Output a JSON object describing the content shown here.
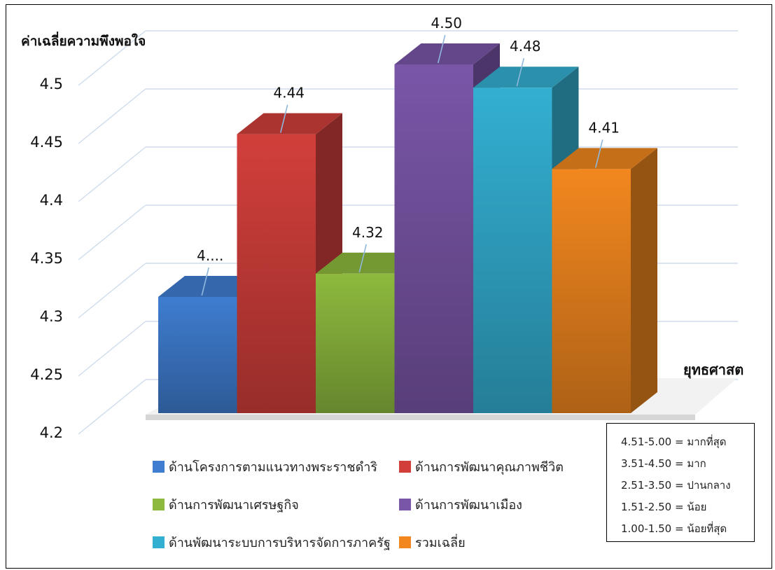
{
  "chart_data": {
    "type": "bar",
    "title": "",
    "ylabel": "ค่าเฉลี่ยความพึงพอใจ",
    "xlabel": "ยุทธศาสต",
    "ylim": [
      4.2,
      4.5
    ],
    "yticks": [
      "4.2",
      "4.25",
      "4.3",
      "4.35",
      "4.4",
      "4.45",
      "4.5"
    ],
    "legend_position": "bottom",
    "style": "3d-column",
    "series": [
      {
        "name": "ด้านโครงการตามแนวทางพระราชดำริ",
        "value": 4.3,
        "label": "4....",
        "color": "#3F7DD0"
      },
      {
        "name": "ด้านการพัฒนาคุณภาพชีวิต",
        "value": 4.44,
        "label": "4.44",
        "color": "#D23F3B"
      },
      {
        "name": "ด้านการพัฒนาเศรษฐกิจ",
        "value": 4.32,
        "label": "4.32",
        "color": "#8DBA3E"
      },
      {
        "name": "ด้านการพัฒนาเมือง",
        "value": 4.5,
        "label": "4.50",
        "color": "#7A56A8"
      },
      {
        "name": "ด้านพัฒนาระบบการบริหารจัดการภาครัฐ",
        "value": 4.48,
        "label": "4.48",
        "color": "#33AFD2"
      },
      {
        "name": "รวมเฉลี่ย",
        "value": 4.41,
        "label": "4.41",
        "color": "#F2871F"
      }
    ]
  },
  "scale_legend": [
    "4.51-5.00  = มากที่สุด",
    "3.51-4.50  = มาก",
    "2.51-3.50  = ปานกลาง",
    "1.51-2.50  = น้อย",
    "1.00-1.50  = น้อยที่สุด"
  ]
}
